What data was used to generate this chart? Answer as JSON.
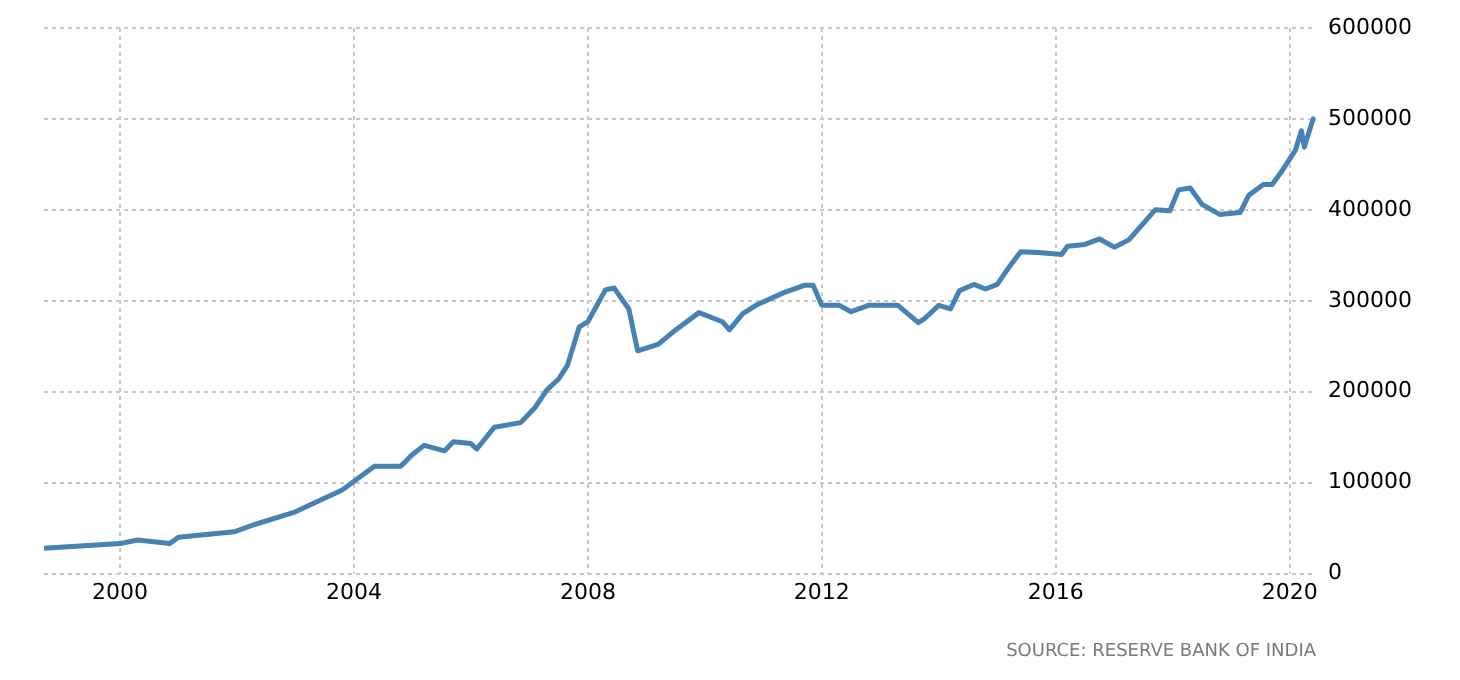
{
  "chart_data": {
    "type": "line",
    "x": [
      1998.7,
      2000,
      2000.3,
      2000.85,
      2001,
      2001.95,
      2002.3,
      2003,
      2003.2,
      2003.8,
      2004.35,
      2004.8,
      2005,
      2005.2,
      2005.55,
      2005.7,
      2006,
      2006.1,
      2006.4,
      2006.85,
      2007.1,
      2007.3,
      2007.5,
      2007.65,
      2007.85,
      2008,
      2008.3,
      2008.45,
      2008.7,
      2008.85,
      2009.2,
      2009.5,
      2009.9,
      2010.3,
      2010.42,
      2010.65,
      2010.9,
      2011.35,
      2011.7,
      2011.85,
      2012,
      2012.3,
      2012.5,
      2012.8,
      2013.3,
      2013.65,
      2013.75,
      2014,
      2014.2,
      2014.35,
      2014.6,
      2014.8,
      2015,
      2015.2,
      2015.4,
      2015.7,
      2016.1,
      2016.2,
      2016.5,
      2016.75,
      2017,
      2017.25,
      2017.7,
      2017.95,
      2018.1,
      2018.3,
      2018.5,
      2018.8,
      2019.15,
      2019.3,
      2019.55,
      2019.7,
      2019.85,
      2020.1,
      2020.2,
      2020.25,
      2020.4
    ],
    "series": [
      {
        "color": "#4682b4",
        "values": [
          28000,
          33000,
          37000,
          33000,
          40000,
          46000,
          54000,
          68000,
          74000,
          92000,
          118000,
          118000,
          131000,
          141000,
          135000,
          145000,
          143000,
          137000,
          161000,
          166000,
          183000,
          202000,
          214000,
          229000,
          271000,
          277000,
          312000,
          314000,
          291000,
          245000,
          252000,
          268000,
          287000,
          277000,
          268000,
          286000,
          296000,
          309000,
          317000,
          317000,
          295000,
          295000,
          288000,
          295000,
          295000,
          276000,
          280000,
          295000,
          291000,
          311000,
          318000,
          313000,
          318000,
          337000,
          354000,
          353000,
          351000,
          360000,
          362000,
          368000,
          359000,
          367000,
          400000,
          399000,
          422000,
          424000,
          406000,
          395000,
          397000,
          416000,
          428000,
          428000,
          441000,
          466000,
          487000,
          469000,
          500000
        ]
      }
    ],
    "xlim": [
      1998.7,
      2020.45
    ],
    "xticks": [
      2000,
      2004,
      2008,
      2012,
      2016,
      2020
    ],
    "ylim": [
      0,
      600000
    ],
    "yticks": [
      0,
      100000,
      200000,
      300000,
      400000,
      500000,
      600000
    ],
    "grid": true,
    "legend": false,
    "marker": "none",
    "line_style": "solid",
    "annotations": [
      "SOURCE: RESERVE BANK OF INDIA"
    ]
  }
}
